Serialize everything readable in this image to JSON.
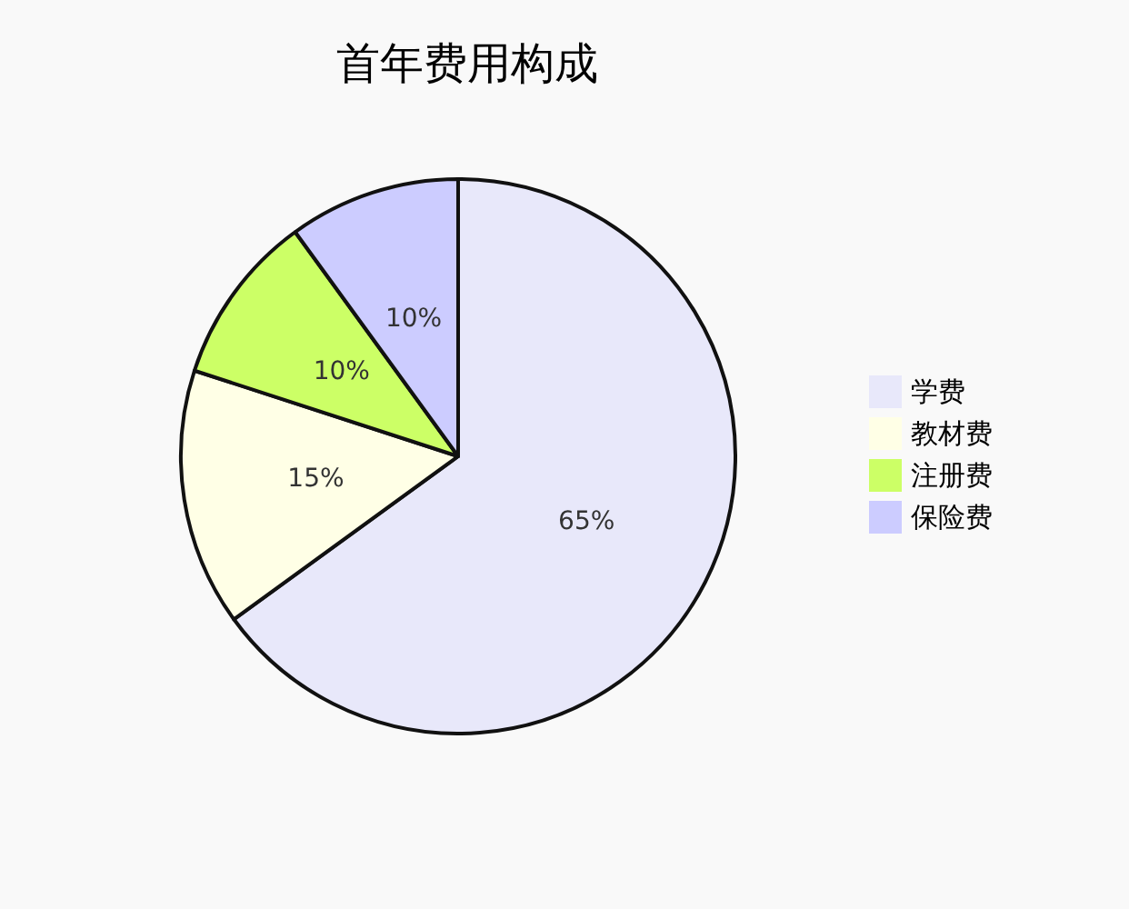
{
  "chart_data": {
    "type": "pie",
    "title": "首年费用构成",
    "categories": [
      "学费",
      "教材费",
      "注册费",
      "保险费"
    ],
    "values": [
      65,
      15,
      10,
      10
    ],
    "colors": [
      "#e8e8fa",
      "#ffffe6",
      "#ccff66",
      "#ccccff"
    ],
    "value_labels": [
      "65%",
      "15%",
      "10%",
      "10%"
    ],
    "legend": "right"
  }
}
